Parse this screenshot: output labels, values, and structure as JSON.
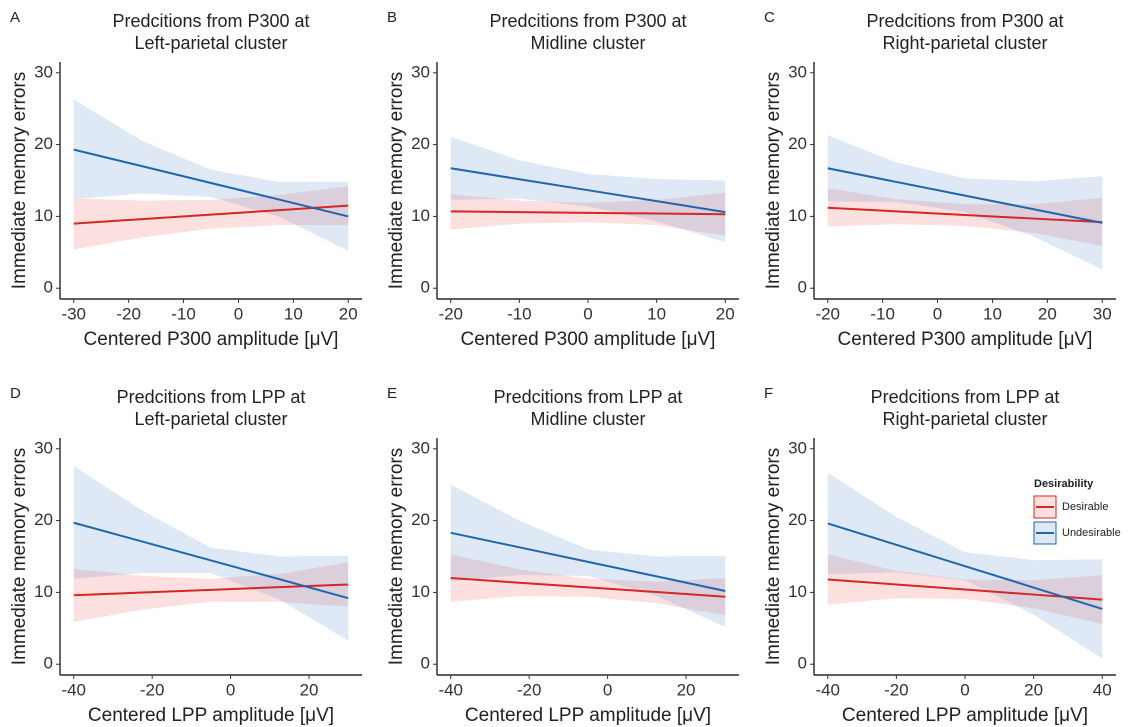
{
  "chart_data": [
    {
      "type": "line",
      "panel": "A",
      "title": [
        "Predcitions from P300 at",
        "Left-parietal cluster"
      ],
      "x_label": "Centered P300 amplitude [μV]",
      "y_label": "Immediate memory errors",
      "x": [
        -30,
        -17.5,
        -5,
        7.5,
        20
      ],
      "xlim": [
        -32.5,
        22.5
      ],
      "xticks": [
        -30,
        -20,
        -10,
        0,
        10,
        20
      ],
      "ylim": [
        -1.5,
        31.5
      ],
      "yticks": [
        0,
        10,
        20,
        30
      ],
      "series": [
        {
          "color": "#d62728",
          "band_color": "rgba(240,110,110,0.22)",
          "values": [
            9.0,
            9.63,
            10.25,
            10.88,
            11.5
          ],
          "upper": [
            12.5,
            12.2,
            12.3,
            13.0,
            14.2
          ],
          "lower": [
            5.4,
            7.1,
            8.3,
            8.8,
            8.8
          ]
        },
        {
          "color": "#2166ac",
          "band_color": "rgba(110,150,210,0.22)",
          "values": [
            19.3,
            16.98,
            14.65,
            12.33,
            10.0
          ],
          "upper": [
            26.3,
            20.5,
            16.5,
            14.8,
            14.8
          ],
          "lower": [
            12.4,
            13.2,
            12.7,
            9.9,
            5.2
          ]
        }
      ]
    },
    {
      "type": "line",
      "panel": "B",
      "title": [
        "Predcitions from P300 at",
        "Midline cluster"
      ],
      "x_label": "Centered P300 amplitude [μV]",
      "y_label": "Immediate memory errors",
      "x": [
        -20,
        -10,
        0,
        10,
        20
      ],
      "xlim": [
        -22,
        22
      ],
      "xticks": [
        -20,
        -10,
        0,
        10,
        20
      ],
      "ylim": [
        -1.5,
        31.5
      ],
      "yticks": [
        0,
        10,
        20,
        30
      ],
      "series": [
        {
          "color": "#d62728",
          "band_color": "rgba(240,110,110,0.22)",
          "values": [
            10.7,
            10.6,
            10.5,
            10.4,
            10.3
          ],
          "upper": [
            13.1,
            12.2,
            11.9,
            12.3,
            13.3
          ],
          "lower": [
            8.2,
            9.0,
            9.2,
            8.8,
            7.3
          ]
        },
        {
          "color": "#2166ac",
          "band_color": "rgba(110,150,210,0.22)",
          "values": [
            16.7,
            15.18,
            13.65,
            12.13,
            10.6
          ],
          "upper": [
            21.1,
            17.8,
            15.9,
            15.2,
            15.0
          ],
          "lower": [
            12.3,
            12.5,
            11.4,
            9.3,
            6.4
          ]
        }
      ]
    },
    {
      "type": "line",
      "panel": "C",
      "title": [
        "Predcitions from P300 at",
        "Right-parietal cluster"
      ],
      "x_label": "Centered P300 amplitude [μV]",
      "y_label": "Immediate memory errors",
      "x": [
        -20,
        -7.5,
        5,
        17.5,
        30
      ],
      "xlim": [
        -22.5,
        32.5
      ],
      "xticks": [
        -20,
        -10,
        0,
        10,
        20,
        30
      ],
      "ylim": [
        -1.5,
        31.5
      ],
      "yticks": [
        0,
        10,
        20,
        30
      ],
      "series": [
        {
          "color": "#d62728",
          "band_color": "rgba(240,110,110,0.22)",
          "values": [
            11.2,
            10.7,
            10.2,
            9.7,
            9.2
          ],
          "upper": [
            13.9,
            12.4,
            11.7,
            11.7,
            12.6
          ],
          "lower": [
            8.6,
            8.9,
            8.7,
            7.7,
            5.9
          ]
        },
        {
          "color": "#2166ac",
          "band_color": "rgba(110,150,210,0.22)",
          "values": [
            16.7,
            14.8,
            12.9,
            11.0,
            9.1
          ],
          "upper": [
            21.3,
            17.5,
            15.3,
            14.9,
            15.6
          ],
          "lower": [
            12.1,
            12.0,
            10.6,
            7.2,
            2.6
          ]
        }
      ]
    },
    {
      "type": "line",
      "panel": "D",
      "title": [
        "Predcitions from LPP at",
        "Left-parietal cluster"
      ],
      "x_label": "Centered LPP amplitude [μV]",
      "y_label": "Immediate memory errors",
      "x": [
        -40,
        -22.5,
        -5,
        12.5,
        30
      ],
      "xlim": [
        -43.5,
        33.5
      ],
      "xticks": [
        -40,
        -20,
        0,
        20
      ],
      "ylim": [
        -1.5,
        31.5
      ],
      "yticks": [
        0,
        10,
        20,
        30
      ],
      "series": [
        {
          "color": "#d62728",
          "band_color": "rgba(240,110,110,0.22)",
          "values": [
            9.6,
            9.98,
            10.35,
            10.73,
            11.1
          ],
          "upper": [
            13.3,
            12.3,
            11.9,
            12.6,
            14.2
          ],
          "lower": [
            5.9,
            7.6,
            8.7,
            8.7,
            8.0
          ]
        },
        {
          "color": "#2166ac",
          "band_color": "rgba(110,150,210,0.22)",
          "values": [
            19.7,
            17.08,
            14.45,
            11.83,
            9.2
          ],
          "upper": [
            27.6,
            21.4,
            16.2,
            15.0,
            15.1
          ],
          "lower": [
            11.9,
            12.7,
            12.7,
            9.0,
            3.3
          ]
        }
      ]
    },
    {
      "type": "line",
      "panel": "E",
      "title": [
        "Predcitions from LPP at",
        "Midline cluster"
      ],
      "x_label": "Centered LPP amplitude [μV]",
      "y_label": "Immediate memory errors",
      "x": [
        -40,
        -22.5,
        -5,
        12.5,
        30
      ],
      "xlim": [
        -43.5,
        33.5
      ],
      "xticks": [
        -40,
        -20,
        0,
        20
      ],
      "ylim": [
        -1.5,
        31.5
      ],
      "yticks": [
        0,
        10,
        20,
        30
      ],
      "series": [
        {
          "color": "#d62728",
          "band_color": "rgba(240,110,110,0.22)",
          "values": [
            12.0,
            11.35,
            10.7,
            10.05,
            9.4
          ],
          "upper": [
            15.3,
            13.2,
            11.9,
            11.5,
            12.0
          ],
          "lower": [
            8.7,
            9.5,
            9.4,
            8.5,
            6.8
          ]
        },
        {
          "color": "#2166ac",
          "band_color": "rgba(110,150,210,0.22)",
          "values": [
            18.3,
            16.28,
            14.25,
            12.23,
            10.2
          ],
          "upper": [
            25.0,
            20.0,
            16.0,
            15.0,
            15.1
          ],
          "lower": [
            11.6,
            12.4,
            12.3,
            9.5,
            5.2
          ]
        }
      ]
    },
    {
      "type": "line",
      "panel": "F",
      "title": [
        "Predcitions from LPP at",
        "Right-parietal cluster"
      ],
      "x_label": "Centered LPP amplitude [μV]",
      "y_label": "Immediate memory errors",
      "x": [
        -40,
        -20,
        0,
        20,
        40
      ],
      "xlim": [
        -44,
        44
      ],
      "xticks": [
        -40,
        -20,
        0,
        20,
        40
      ],
      "ylim": [
        -1.5,
        31.5
      ],
      "yticks": [
        0,
        10,
        20,
        30
      ],
      "legend": {
        "title": "Desirability",
        "items": [
          {
            "name": "Desirable",
            "color": "#d62728",
            "band_color": "rgba(240,110,110,0.22)"
          },
          {
            "name": "Undesirable",
            "color": "#2166ac",
            "band_color": "rgba(110,150,210,0.22)"
          }
        ]
      },
      "series": [
        {
          "color": "#d62728",
          "band_color": "rgba(240,110,110,0.22)",
          "values": [
            11.8,
            11.1,
            10.4,
            9.7,
            9.0
          ],
          "upper": [
            15.3,
            13.0,
            11.8,
            11.7,
            12.4
          ],
          "lower": [
            8.3,
            9.2,
            9.1,
            7.8,
            5.6
          ]
        },
        {
          "color": "#2166ac",
          "band_color": "rgba(110,150,210,0.22)",
          "values": [
            19.6,
            16.63,
            13.65,
            10.68,
            7.7
          ],
          "upper": [
            26.7,
            20.5,
            15.6,
            14.5,
            14.6
          ],
          "lower": [
            12.5,
            12.8,
            11.7,
            6.9,
            0.8
          ]
        }
      ]
    }
  ]
}
